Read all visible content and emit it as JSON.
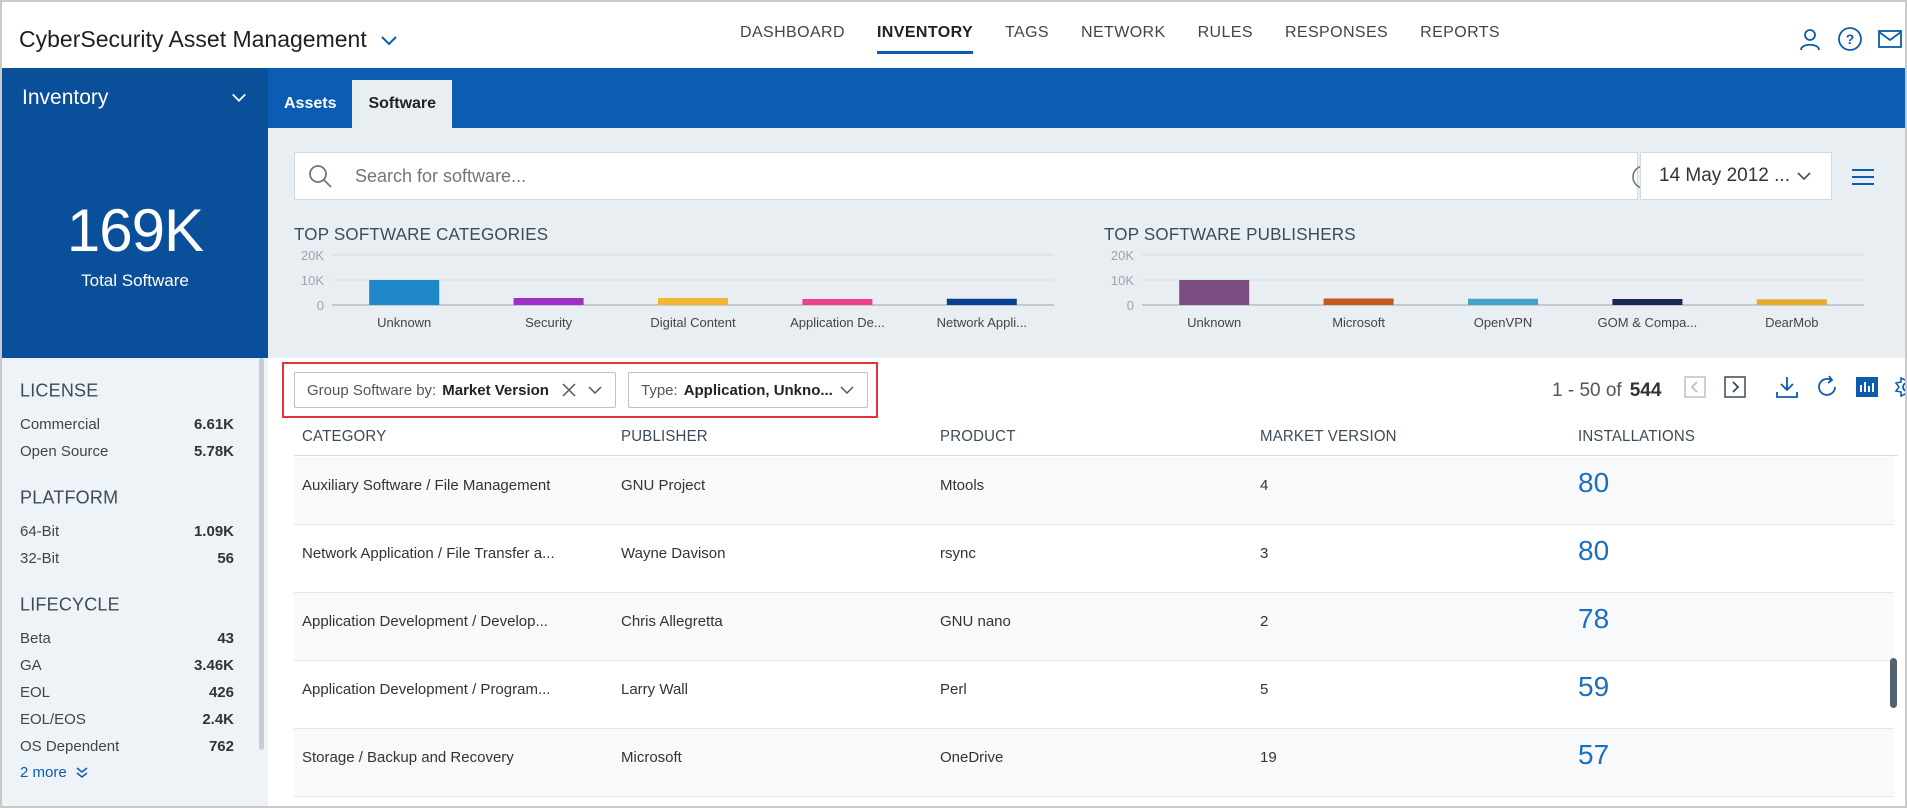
{
  "app": {
    "title": "CyberSecurity Asset Management"
  },
  "nav": {
    "items": [
      {
        "label": "DASHBOARD",
        "active": false
      },
      {
        "label": "INVENTORY",
        "active": true
      },
      {
        "label": "TAGS",
        "active": false
      },
      {
        "label": "NETWORK",
        "active": false
      },
      {
        "label": "RULES",
        "active": false
      },
      {
        "label": "RESPONSES",
        "active": false
      },
      {
        "label": "REPORTS",
        "active": false
      }
    ]
  },
  "header_icons": [
    "user-icon",
    "help-icon",
    "mail-icon"
  ],
  "inventory_select": {
    "label": "Inventory"
  },
  "tabs": [
    {
      "label": "Assets",
      "active": false
    },
    {
      "label": "Software",
      "active": true
    }
  ],
  "summary": {
    "count": "169K",
    "label": "Total Software"
  },
  "sidebar": {
    "groups": [
      {
        "title": "LICENSE",
        "rows": [
          {
            "label": "Commercial",
            "value": "6.61K"
          },
          {
            "label": "Open Source",
            "value": "5.78K"
          }
        ]
      },
      {
        "title": "PLATFORM",
        "rows": [
          {
            "label": "64-Bit",
            "value": "1.09K"
          },
          {
            "label": "32-Bit",
            "value": "56"
          }
        ]
      },
      {
        "title": "LIFECYCLE",
        "rows": [
          {
            "label": "Beta",
            "value": "43"
          },
          {
            "label": "GA",
            "value": "3.46K"
          },
          {
            "label": "EOL",
            "value": "426"
          },
          {
            "label": "EOL/EOS",
            "value": "2.4K"
          },
          {
            "label": "OS Dependent",
            "value": "762"
          }
        ]
      }
    ],
    "more": "2 more"
  },
  "search": {
    "placeholder": "Search for software..."
  },
  "date_filter": {
    "value": "14 May 2012 ..."
  },
  "chart_data": [
    {
      "type": "bar",
      "title": "TOP SOFTWARE CATEGORIES",
      "categories": [
        "Unknown",
        "Security",
        "Digital Content",
        "Application De...",
        "Network Appli..."
      ],
      "values": [
        10000,
        2800,
        2800,
        2400,
        2500
      ],
      "colors": [
        "#1f88c9",
        "#a02fc4",
        "#f2b632",
        "#ee3f8d",
        "#0a3f8f"
      ],
      "yticks": [
        "20K",
        "10K",
        "0"
      ],
      "ylim": [
        0,
        20000
      ]
    },
    {
      "type": "bar",
      "title": "TOP SOFTWARE PUBLISHERS",
      "categories": [
        "Unknown",
        "Microsoft",
        "OpenVPN",
        "GOM & Compa...",
        "DearMob"
      ],
      "values": [
        10000,
        2600,
        2500,
        2400,
        2300
      ],
      "colors": [
        "#7a4e80",
        "#c4571b",
        "#45a3c7",
        "#17284f",
        "#e9a92e"
      ],
      "yticks": [
        "20K",
        "10K",
        "0"
      ],
      "ylim": [
        0,
        20000
      ]
    }
  ],
  "filters": {
    "group_by": {
      "label": "Group Software by:",
      "value": "Market Version"
    },
    "type": {
      "label": "Type:",
      "value": "Application, Unkno..."
    }
  },
  "pager": {
    "range": "1 - 50 of",
    "total": "544"
  },
  "table": {
    "columns": [
      "CATEGORY",
      "PUBLISHER",
      "PRODUCT",
      "MARKET VERSION",
      "INSTALLATIONS"
    ],
    "rows": [
      [
        "Auxiliary Software / File Management",
        "GNU Project",
        "Mtools",
        "4",
        "80"
      ],
      [
        "Network Application / File Transfer a...",
        "Wayne Davison",
        "rsync",
        "3",
        "80"
      ],
      [
        "Application Development / Develop...",
        "Chris Allegretta",
        "GNU nano",
        "2",
        "78"
      ],
      [
        "Application Development / Program...",
        "Larry Wall",
        "Perl",
        "5",
        "59"
      ],
      [
        "Storage / Backup and Recovery",
        "Microsoft",
        "OneDrive",
        "19",
        "57"
      ]
    ]
  }
}
